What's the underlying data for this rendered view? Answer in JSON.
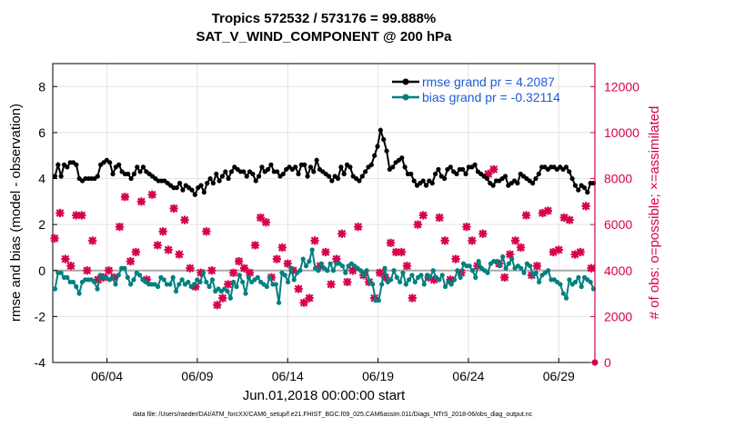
{
  "chart_data": {
    "type": "line",
    "title": "Tropics 572532 / 573176 = 99.888%",
    "subtitle": "SAT_V_WIND_COMPONENT @ 200 hPa",
    "xlabel": "Jun.01,2018 00:00:00 start",
    "ylabel_left": "rmse and bias (model - observation)",
    "ylabel_right": "# of obs: o=possible; ×=assimilated",
    "footnote": "data file: /Users/raeder/DAI/ATM_forcXX/CAM6_setup/f.e21.FHIST_BGC.f09_025.CAM6assim.011/Diags_NTrS_2018-06/obs_diag_output.nc",
    "xlim": [
      0,
      30
    ],
    "ylim_left": [
      -4,
      9
    ],
    "ylim_right": [
      0,
      13000
    ],
    "x_ticks": [
      3,
      8,
      13,
      18,
      23,
      28
    ],
    "x_tick_labels": [
      "06/04",
      "06/09",
      "06/14",
      "06/19",
      "06/24",
      "06/29"
    ],
    "y_left_ticks": [
      -4,
      -2,
      0,
      2,
      4,
      6,
      8
    ],
    "y_right_ticks": [
      0,
      2000,
      4000,
      6000,
      8000,
      10000,
      12000
    ],
    "grid": true,
    "legend_position": "top-right",
    "colors": {
      "rmse": "#000000",
      "bias": "#00807f",
      "obs": "#d6004d",
      "zero": "#aaaaaa",
      "legend_text": "#1f5bd6"
    },
    "series": [
      {
        "name": "rmse grand pr = 4.2087",
        "axis": "left",
        "values": [
          4.1,
          4.6,
          4.1,
          4.6,
          4.5,
          4.7,
          4.7,
          4.6,
          4.0,
          3.9,
          4.0,
          4.0,
          4.0,
          4.0,
          4.1,
          4.6,
          4.7,
          4.8,
          4.7,
          4.2,
          4.5,
          4.6,
          4.3,
          4.2,
          4.2,
          4.0,
          4.2,
          4.5,
          4.3,
          4.5,
          4.3,
          4.2,
          4.1,
          4.0,
          3.9,
          3.9,
          3.9,
          3.8,
          3.7,
          3.6,
          3.6,
          3.8,
          3.5,
          3.7,
          3.6,
          3.5,
          3.3,
          3.6,
          3.7,
          3.4,
          3.8,
          4.0,
          3.8,
          4.2,
          3.9,
          4.1,
          4.3,
          4.0,
          4.3,
          4.5,
          4.4,
          4.3,
          4.3,
          4.1,
          4.3,
          4.2,
          3.9,
          4.1,
          4.5,
          4.3,
          4.4,
          4.6,
          4.3,
          4.3,
          4.1,
          4.2,
          4.4,
          4.5,
          4.4,
          4.5,
          4.2,
          4.6,
          4.6,
          4.1,
          4.5,
          4.3,
          4.8,
          4.4,
          4.3,
          4.2,
          4.1,
          3.9,
          4.1,
          4.0,
          4.5,
          4.2,
          4.6,
          4.5,
          4.1,
          4.0,
          3.9,
          4.1,
          4.3,
          4.5,
          4.6,
          5.0,
          5.4,
          6.1,
          5.7,
          5.2,
          4.4,
          4.5,
          4.7,
          4.8,
          4.9,
          4.5,
          4.2,
          4.2,
          3.9,
          3.7,
          3.8,
          3.9,
          3.7,
          3.9,
          3.8,
          4.2,
          4.4,
          4.1,
          4.0,
          4.4,
          4.5,
          4.3,
          4.2,
          4.4,
          4.4,
          4.2,
          4.5,
          4.5,
          4.6,
          4.3,
          4.2,
          4.1,
          4.0,
          3.8,
          3.7,
          3.9,
          3.9,
          4.0,
          4.1,
          3.7,
          3.8,
          3.9,
          3.8,
          4.2,
          4.1,
          4.0,
          3.9,
          3.8,
          4.0,
          4.2,
          4.5,
          4.5,
          4.4,
          4.5,
          4.5,
          4.4,
          4.5,
          4.4,
          4.5,
          4.3,
          4.0,
          3.7,
          3.5,
          3.7,
          3.6,
          3.4,
          3.8,
          3.8
        ]
      },
      {
        "name": "bias grand pr = -0.32114",
        "axis": "left",
        "values": [
          -0.8,
          -0.1,
          -0.1,
          -0.3,
          -0.3,
          -0.5,
          -0.5,
          -0.7,
          -1.0,
          -0.5,
          -0.4,
          -0.4,
          -0.4,
          -0.5,
          -0.8,
          -0.2,
          -0.3,
          -0.3,
          -0.4,
          -0.3,
          -0.6,
          -0.2,
          0.1,
          0.1,
          -0.3,
          -0.6,
          -0.4,
          -0.1,
          -0.2,
          -0.4,
          -0.5,
          -0.6,
          -0.6,
          -0.6,
          -0.7,
          -0.3,
          -0.4,
          -0.6,
          -0.6,
          -0.3,
          -0.9,
          -0.6,
          -0.4,
          -0.6,
          -0.5,
          -0.7,
          -0.6,
          -0.4,
          -0.5,
          -0.1,
          -0.5,
          -0.7,
          -0.4,
          -0.9,
          -0.8,
          -0.9,
          -0.8,
          -0.9,
          -1.2,
          -0.5,
          -0.7,
          -0.2,
          -0.5,
          -1.0,
          -0.3,
          -0.5,
          -0.4,
          -0.3,
          -0.5,
          -0.6,
          -0.7,
          -0.3,
          -0.6,
          -0.6,
          -1.4,
          -0.1,
          -0.2,
          -0.5,
          0.1,
          -0.4,
          -0.1,
          0.0,
          0.5,
          0.2,
          0.4,
          0.9,
          0.1,
          0.0,
          0.3,
          0.1,
          0.0,
          0.3,
          0.0,
          0.3,
          0.3,
          0.2,
          -0.1,
          0.2,
          0.3,
          0.2,
          0.1,
          0.0,
          -0.2,
          0.0,
          -0.5,
          -0.6,
          -1.3,
          -1.3,
          -0.6,
          0.1,
          -0.5,
          -0.4,
          0.0,
          -0.3,
          -0.5,
          -0.1,
          -0.6,
          -0.4,
          -0.2,
          -0.5,
          -0.3,
          -0.2,
          -0.6,
          -0.2,
          -0.3,
          0.0,
          -0.3,
          -0.4,
          -0.2,
          -0.7,
          -0.5,
          -0.6,
          -0.4,
          0.0,
          -0.3,
          0.3,
          0.2,
          0.2,
          0.0,
          -0.3,
          0.4,
          0.1,
          0.0,
          -0.1,
          0.3,
          0.4,
          0.4,
          0.2,
          0.6,
          0.1,
          0.3,
          0.5,
          0.1,
          0.2,
          0.1,
          -0.1,
          0.3,
          0.2,
          -0.2,
          -0.1,
          -0.5,
          -0.2,
          -0.1,
          0.0,
          -0.4,
          -0.4,
          -0.5,
          -0.6,
          -1.0,
          -1.2,
          -0.4,
          -0.6,
          -0.5,
          -0.3,
          -0.7,
          -0.3,
          -0.4,
          -0.5,
          -0.8
        ]
      },
      {
        "name": "obs possible / assimilated",
        "axis": "right",
        "x": [
          0.1,
          0.4,
          0.7,
          1.0,
          1.3,
          1.6,
          1.9,
          2.2,
          2.5,
          2.8,
          3.1,
          3.4,
          3.7,
          4.0,
          4.3,
          4.6,
          4.9,
          5.2,
          5.5,
          5.8,
          6.1,
          6.4,
          6.7,
          7.0,
          7.3,
          7.6,
          7.9,
          8.2,
          8.5,
          8.8,
          9.1,
          9.4,
          9.7,
          10.0,
          10.3,
          10.6,
          10.9,
          11.2,
          11.5,
          11.8,
          12.1,
          12.4,
          12.7,
          13.0,
          13.3,
          13.6,
          13.9,
          14.2,
          14.5,
          14.8,
          15.1,
          15.4,
          15.7,
          16.0,
          16.3,
          16.6,
          16.9,
          17.2,
          17.5,
          17.8,
          18.1,
          18.4,
          18.7,
          19.0,
          19.3,
          19.6,
          19.9,
          20.2,
          20.5,
          20.8,
          21.1,
          21.4,
          21.7,
          22.0,
          22.3,
          22.6,
          22.9,
          23.2,
          23.5,
          23.8,
          24.1,
          24.4,
          24.7,
          25.0,
          25.3,
          25.6,
          25.9,
          26.2,
          26.5,
          26.8,
          27.1,
          27.4,
          27.7,
          28.0,
          28.3,
          28.6,
          28.9,
          29.2,
          29.5,
          29.8
        ],
        "values": [
          5400,
          6500,
          4500,
          4200,
          6400,
          6400,
          4000,
          5300,
          3600,
          3700,
          4000,
          3700,
          5900,
          7200,
          4400,
          4800,
          7000,
          3600,
          7300,
          5100,
          5700,
          4900,
          6700,
          4700,
          6200,
          4100,
          3300,
          3900,
          5700,
          4000,
          2500,
          2800,
          3400,
          3900,
          4400,
          4100,
          3900,
          5100,
          6300,
          6100,
          3700,
          4500,
          5000,
          4300,
          4000,
          3200,
          2600,
          2800,
          5300,
          4200,
          4800,
          3400,
          4500,
          5600,
          3500,
          4000,
          5900,
          3800,
          3500,
          2800,
          3900,
          3700,
          5200,
          4800,
          4800,
          4200,
          2800,
          6000,
          6400,
          3700,
          3600,
          6300,
          5300,
          3600,
          4500,
          3900,
          5900,
          5300,
          4200,
          5600,
          8200,
          8400,
          4300,
          3700,
          4700,
          5300,
          5000,
          6400,
          3800,
          4200,
          6500,
          6600,
          4800,
          4900,
          6300,
          6200,
          4700,
          4800,
          6800,
          4100
        ]
      }
    ]
  }
}
